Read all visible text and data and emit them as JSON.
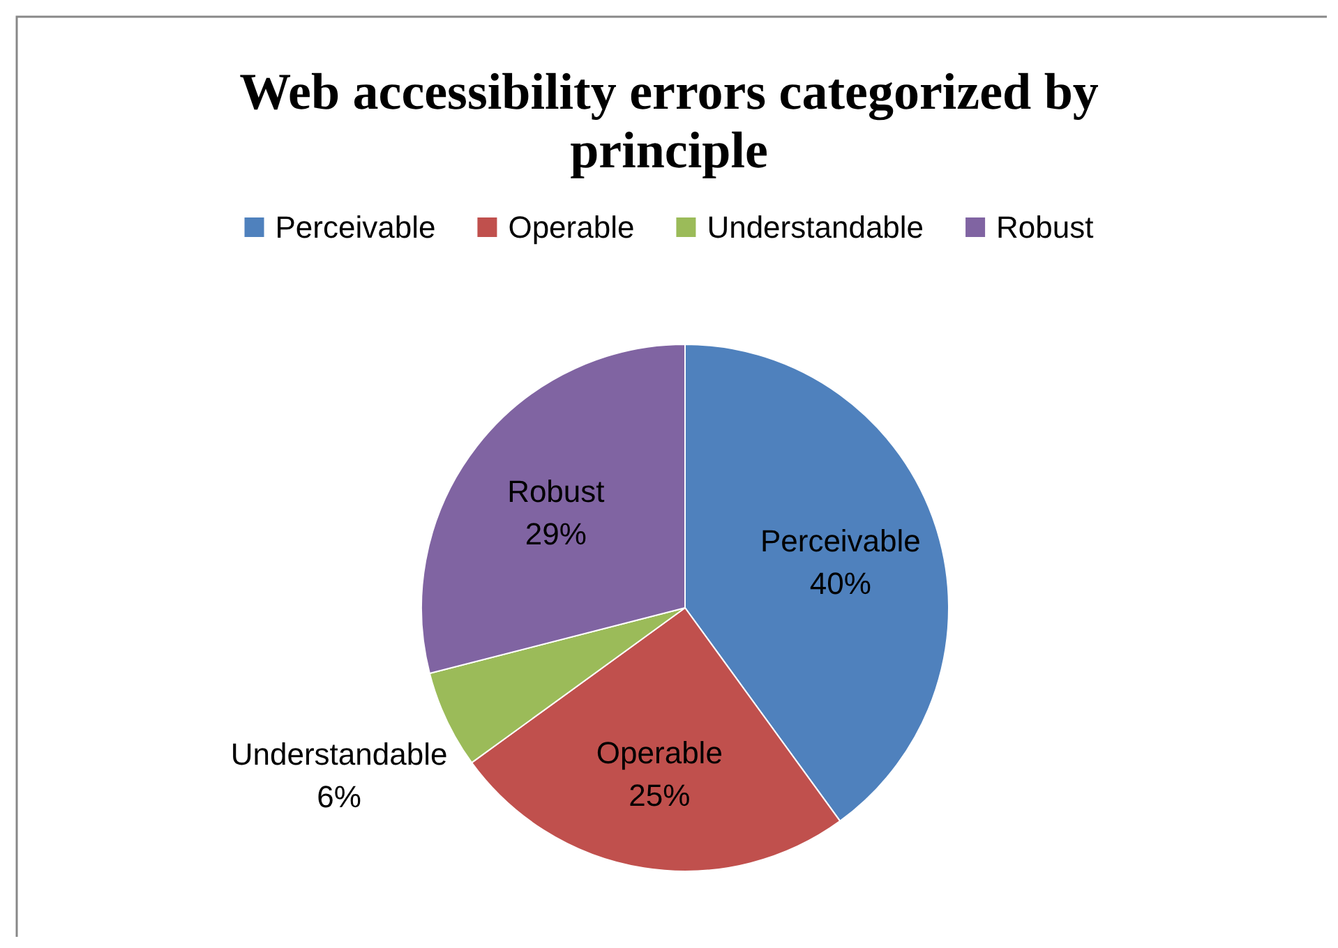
{
  "chart_data": {
    "type": "pie",
    "title": "Web accessibility errors categorized by principle",
    "categories": [
      "Perceivable",
      "Operable",
      "Understandable",
      "Robust"
    ],
    "values": [
      40,
      25,
      6,
      29
    ],
    "colors": [
      "#4f81bd",
      "#c0504d",
      "#9bbb59",
      "#8064a2"
    ],
    "value_labels": [
      "40%",
      "25%",
      "6%",
      "29%"
    ],
    "legend": "top"
  }
}
